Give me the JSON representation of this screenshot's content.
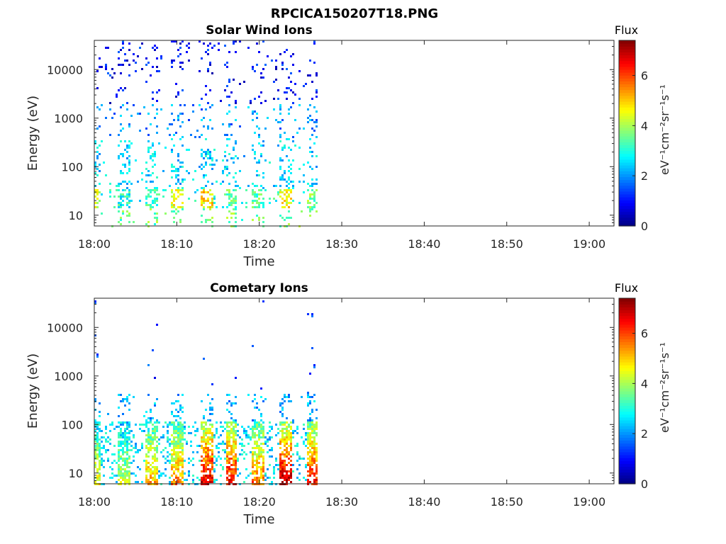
{
  "figure": {
    "title": "RPCICA150207T18.PNG"
  },
  "chart_data": [
    {
      "type": "heatmap",
      "title": "Solar Wind Ions",
      "xlabel": "Time",
      "ylabel": "Energy (eV)",
      "x_ticks": [
        "18:00",
        "18:10",
        "18:20",
        "18:30",
        "18:40",
        "18:50",
        "19:00"
      ],
      "xlim": [
        "18:00",
        "19:03"
      ],
      "y_scale": "log",
      "y_ticks": [
        10,
        100,
        1000,
        10000
      ],
      "y_tick_labels": [
        "10",
        "100",
        "1000",
        "10000"
      ],
      "ylim": [
        6,
        40000
      ],
      "data_extent": [
        "18:00",
        "18:27"
      ],
      "colorbar": {
        "title": "Flux",
        "label": "eV⁻¹cm⁻²sr⁻¹s⁻¹",
        "ticks": [
          0,
          2,
          4,
          6
        ],
        "range": [
          0,
          7.4
        ],
        "colormap": "jet"
      },
      "bursts": [
        {
          "t": "18:00",
          "f": 4.4
        },
        {
          "t": "18:03.5",
          "f": 3.0
        },
        {
          "t": "18:06.8",
          "f": 3.2
        },
        {
          "t": "18:10",
          "f": 4.4
        },
        {
          "t": "18:13.5",
          "f": 4.8
        },
        {
          "t": "18:16.5",
          "f": 3.4
        },
        {
          "t": "18:19.7",
          "f": 3.5
        },
        {
          "t": "18:23",
          "f": 4.6
        },
        {
          "t": "18:26.3",
          "f": 3.6
        }
      ]
    },
    {
      "type": "heatmap",
      "title": "Cometary Ions",
      "xlabel": "Time",
      "ylabel": "Energy (eV)",
      "x_ticks": [
        "18:00",
        "18:10",
        "18:20",
        "18:30",
        "18:40",
        "18:50",
        "19:00"
      ],
      "xlim": [
        "18:00",
        "19:03"
      ],
      "y_scale": "log",
      "y_ticks": [
        10,
        100,
        1000,
        10000
      ],
      "y_tick_labels": [
        "10",
        "100",
        "1000",
        "10000"
      ],
      "ylim": [
        6,
        40000
      ],
      "data_extent": [
        "18:00",
        "18:27"
      ],
      "colorbar": {
        "title": "Flux",
        "label": "eV⁻¹cm⁻²sr⁻¹s⁻¹",
        "ticks": [
          0,
          2,
          4,
          6
        ],
        "range": [
          0,
          7.4
        ],
        "colormap": "jet"
      },
      "bursts": [
        {
          "t": "18:00",
          "f": 4.6
        },
        {
          "t": "18:03.5",
          "f": 4.3
        },
        {
          "t": "18:06.8",
          "f": 5.2
        },
        {
          "t": "18:10",
          "f": 5.6
        },
        {
          "t": "18:13.5",
          "f": 6.8
        },
        {
          "t": "18:16.5",
          "f": 6.6
        },
        {
          "t": "18:19.7",
          "f": 5.7
        },
        {
          "t": "18:23",
          "f": 7.0
        },
        {
          "t": "18:26.3",
          "f": 6.4
        }
      ]
    }
  ]
}
